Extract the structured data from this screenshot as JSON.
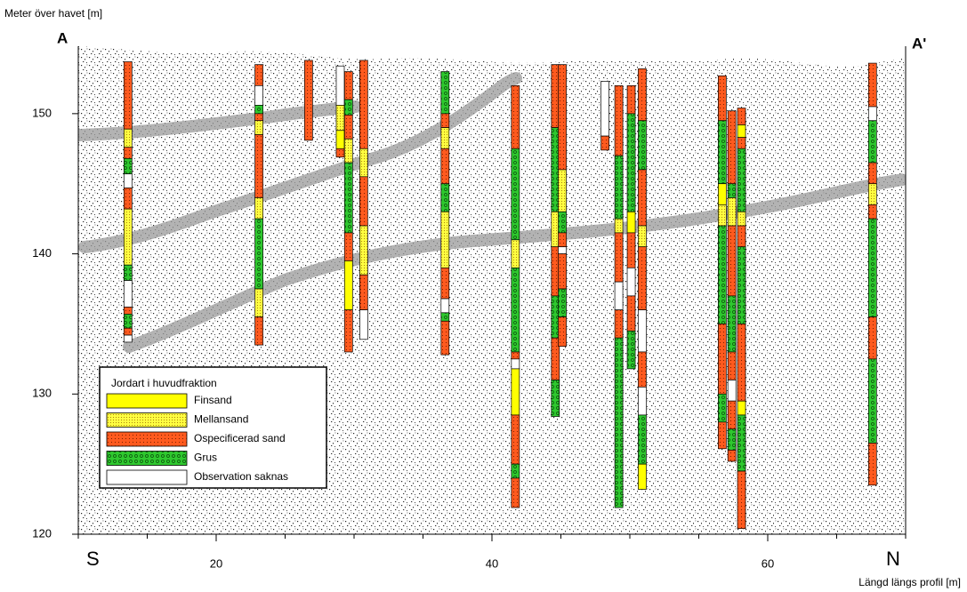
{
  "chart_data": {
    "type": "borehole-profile",
    "y_label": "Meter över havet [m]",
    "x_label": "Längd längs profil [m]",
    "section_start": "A",
    "section_end": "A'",
    "direction_start": "S",
    "direction_end": "N",
    "xlim": [
      10,
      70
    ],
    "xticks": [
      20,
      40,
      60
    ],
    "xminorticks": [
      10,
      15,
      25,
      30,
      35,
      45,
      50,
      55,
      65,
      70
    ],
    "ylim": [
      120,
      155
    ],
    "yticks": [
      120,
      130,
      140,
      150
    ],
    "legend_title": "Jordart i huvudfraktion",
    "legend_position": "lower left",
    "series": [
      {
        "name": "Finsand",
        "color": "#ffff00"
      },
      {
        "name": "Mellansand",
        "color": "#ffff40"
      },
      {
        "name": "Ospecificerad sand",
        "color": "#ff5a1e"
      },
      {
        "name": "Grus",
        "color": "#2ec82e"
      },
      {
        "name": "Observation saknas",
        "color": "#ffffff"
      }
    ],
    "boreholes": [
      {
        "x": 13.6,
        "segments": [
          [
            153.7,
            148.9,
            2
          ],
          [
            148.9,
            147.6,
            1
          ],
          [
            147.6,
            146.8,
            2
          ],
          [
            146.8,
            145.7,
            3
          ],
          [
            145.7,
            144.7,
            4
          ],
          [
            144.7,
            143.2,
            2
          ],
          [
            143.2,
            139.2,
            1
          ],
          [
            139.2,
            138.1,
            3
          ],
          [
            138.1,
            136.2,
            4
          ],
          [
            136.2,
            135.7,
            2
          ],
          [
            135.7,
            134.7,
            3
          ],
          [
            134.7,
            134.2,
            2
          ],
          [
            134.2,
            133.7,
            4
          ]
        ]
      },
      {
        "x": 23.1,
        "segments": [
          [
            153.5,
            152,
            2
          ],
          [
            152,
            150.6,
            4
          ],
          [
            150.6,
            150,
            3
          ],
          [
            150,
            149.5,
            2
          ],
          [
            149.5,
            148.5,
            1
          ],
          [
            148.5,
            144,
            2
          ],
          [
            144,
            142.5,
            1
          ],
          [
            142.5,
            137.5,
            3
          ],
          [
            137.5,
            135.5,
            1
          ],
          [
            135.5,
            133.5,
            2
          ]
        ]
      },
      {
        "x": 26.7,
        "segments": [
          [
            153.8,
            148.1,
            2
          ]
        ]
      },
      {
        "x": 29,
        "segments": [
          [
            153.4,
            150.6,
            4
          ],
          [
            150.6,
            148.8,
            1
          ],
          [
            148.8,
            147.5,
            0
          ],
          [
            147.5,
            146.9,
            2
          ]
        ]
      },
      {
        "x": 29.6,
        "segments": [
          [
            153,
            151,
            2
          ],
          [
            151,
            149.9,
            3
          ],
          [
            149.9,
            148.2,
            2
          ],
          [
            148.2,
            146.5,
            1
          ],
          [
            146.5,
            141.5,
            3
          ],
          [
            141.5,
            139.5,
            2
          ],
          [
            139.5,
            136,
            0
          ],
          [
            136,
            133,
            2
          ]
        ]
      },
      {
        "x": 30.7,
        "segments": [
          [
            153.8,
            147.5,
            2
          ],
          [
            147.5,
            145.5,
            1
          ],
          [
            145.5,
            142,
            2
          ],
          [
            142,
            138.5,
            1
          ],
          [
            138.5,
            136,
            2
          ],
          [
            136,
            133.9,
            4
          ]
        ]
      },
      {
        "x": 36.6,
        "segments": [
          [
            153,
            150,
            3
          ],
          [
            150,
            149,
            2
          ],
          [
            149,
            147.5,
            1
          ],
          [
            147.5,
            145,
            2
          ],
          [
            145,
            143,
            3
          ],
          [
            143,
            139,
            1
          ],
          [
            139,
            136.8,
            2
          ],
          [
            136.8,
            135.8,
            4
          ],
          [
            135.8,
            135.2,
            3
          ],
          [
            135.2,
            132.8,
            2
          ]
        ]
      },
      {
        "x": 41.7,
        "segments": [
          [
            152,
            147.5,
            2
          ],
          [
            147.5,
            141,
            3
          ],
          [
            141,
            139,
            1
          ],
          [
            139,
            133,
            3
          ],
          [
            133,
            132.5,
            2
          ],
          [
            132.5,
            131.8,
            4
          ],
          [
            131.8,
            128.5,
            0
          ],
          [
            128.5,
            125,
            2
          ],
          [
            125,
            124,
            3
          ],
          [
            124,
            121.9,
            2
          ]
        ]
      },
      {
        "x": 44.6,
        "segments": [
          [
            153.5,
            149,
            2
          ],
          [
            149,
            143,
            3
          ],
          [
            143,
            140.5,
            1
          ],
          [
            140.5,
            137,
            2
          ],
          [
            137,
            134,
            3
          ],
          [
            134,
            131,
            2
          ],
          [
            131,
            128.4,
            3
          ]
        ]
      },
      {
        "x": 45.1,
        "segments": [
          [
            153.5,
            146,
            2
          ],
          [
            146,
            143,
            1
          ],
          [
            143,
            141.5,
            3
          ],
          [
            141.5,
            140.5,
            2
          ],
          [
            140.5,
            140,
            4
          ],
          [
            140,
            137.5,
            2
          ],
          [
            137.5,
            135.5,
            3
          ],
          [
            135.5,
            133.4,
            2
          ]
        ]
      },
      {
        "x": 48.2,
        "segments": [
          [
            152.3,
            148.4,
            4
          ],
          [
            148.4,
            147.4,
            2
          ]
        ]
      },
      {
        "x": 49.2,
        "segments": [
          [
            152,
            147,
            2
          ],
          [
            147,
            142.5,
            3
          ],
          [
            142.5,
            141.5,
            1
          ],
          [
            141.5,
            138,
            2
          ],
          [
            138,
            136,
            4
          ],
          [
            136,
            134,
            2
          ],
          [
            134,
            121.9,
            3
          ]
        ]
      },
      {
        "x": 50.1,
        "segments": [
          [
            152,
            150,
            2
          ],
          [
            150,
            143,
            3
          ],
          [
            143,
            141.5,
            0
          ],
          [
            141.5,
            139,
            2
          ],
          [
            139,
            137,
            4
          ],
          [
            137,
            134.5,
            2
          ],
          [
            134.5,
            131.8,
            3
          ]
        ]
      },
      {
        "x": 50.9,
        "segments": [
          [
            153.2,
            149.5,
            2
          ],
          [
            149.5,
            146,
            3
          ],
          [
            146,
            142,
            2
          ],
          [
            142,
            140.5,
            1
          ],
          [
            140.5,
            136,
            2
          ],
          [
            136,
            133,
            4
          ],
          [
            133,
            130.5,
            2
          ],
          [
            130.5,
            128.5,
            4
          ],
          [
            128.5,
            125,
            3
          ],
          [
            125,
            123.2,
            0
          ]
        ]
      },
      {
        "x": 56.7,
        "segments": [
          [
            152.7,
            149.5,
            2
          ],
          [
            149.5,
            145,
            3
          ],
          [
            145,
            143.5,
            0
          ],
          [
            143.5,
            142,
            1
          ],
          [
            142,
            135,
            3
          ],
          [
            135,
            130,
            2
          ],
          [
            130,
            128,
            3
          ],
          [
            128,
            126.1,
            2
          ]
        ]
      },
      {
        "x": 57.4,
        "segments": [
          [
            150.2,
            145,
            2
          ],
          [
            145,
            144,
            3
          ],
          [
            144,
            142,
            1
          ],
          [
            142,
            137,
            2
          ],
          [
            137,
            133,
            3
          ],
          [
            133,
            131,
            2
          ],
          [
            131,
            129.5,
            4
          ],
          [
            129.5,
            127.5,
            2
          ],
          [
            127.5,
            126,
            3
          ],
          [
            126,
            125.2,
            2
          ]
        ]
      },
      {
        "x": 58.1,
        "segments": [
          [
            150.4,
            149.2,
            2
          ],
          [
            149.2,
            148.3,
            0
          ],
          [
            148.3,
            147.5,
            2
          ],
          [
            147.5,
            143,
            3
          ],
          [
            143,
            142,
            1
          ],
          [
            142,
            140.5,
            2
          ],
          [
            140.5,
            135,
            3
          ],
          [
            135,
            129.5,
            2
          ],
          [
            129.5,
            128.5,
            0
          ],
          [
            128.5,
            124.5,
            3
          ],
          [
            124.5,
            120.4,
            2
          ]
        ]
      },
      {
        "x": 67.6,
        "segments": [
          [
            153.6,
            150.5,
            2
          ],
          [
            150.5,
            149.5,
            4
          ],
          [
            149.5,
            146.5,
            3
          ],
          [
            146.5,
            145,
            2
          ],
          [
            145,
            143.5,
            1
          ],
          [
            143.5,
            142.5,
            2
          ],
          [
            142.5,
            135.5,
            3
          ],
          [
            135.5,
            132.5,
            2
          ],
          [
            132.5,
            126.5,
            3
          ],
          [
            126.5,
            123.5,
            2
          ]
        ]
      }
    ]
  }
}
